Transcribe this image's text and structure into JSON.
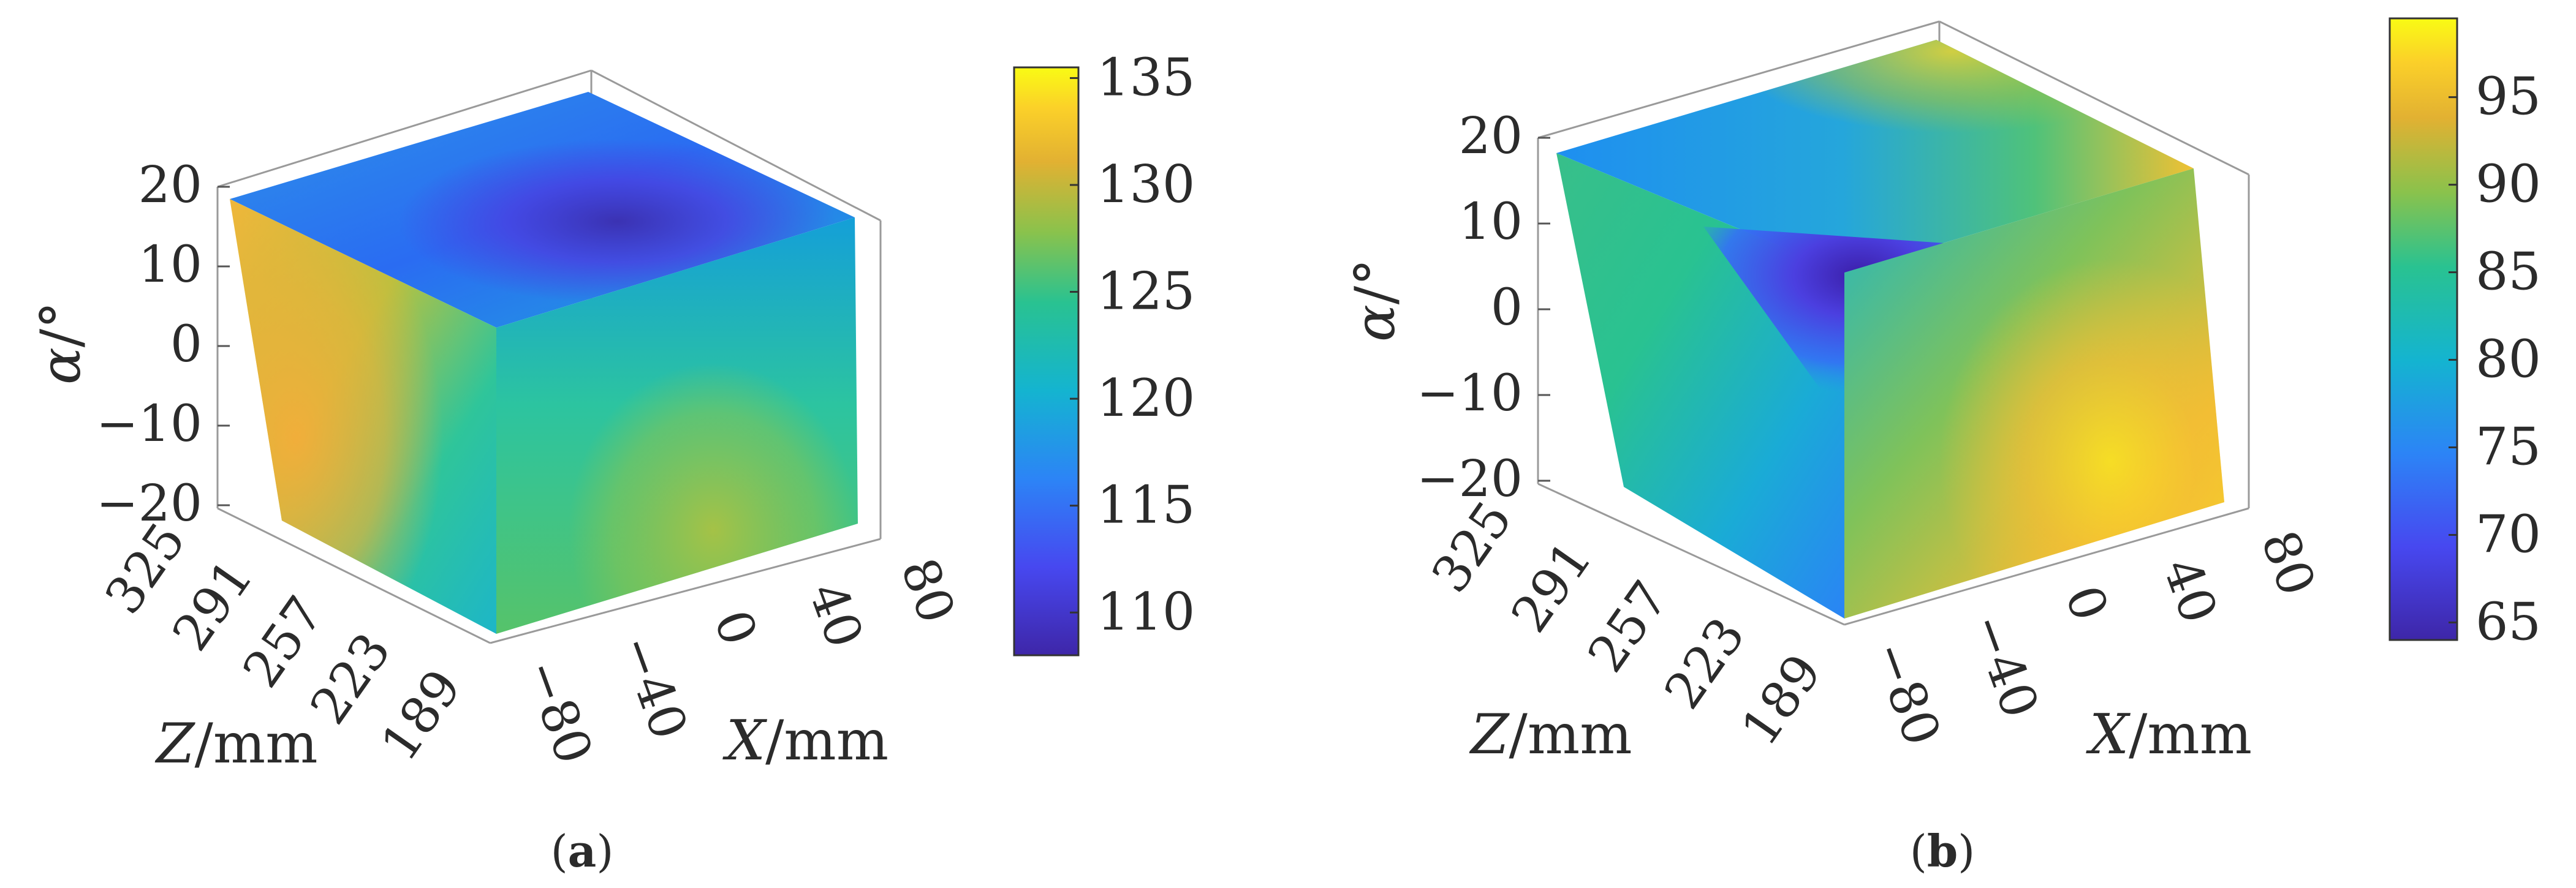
{
  "figure": {
    "panels": [
      {
        "label": "(a)",
        "label_letter": "a",
        "colormap": "parula",
        "colorbar": {
          "ticks": [
            "110",
            "115",
            "120",
            "125",
            "130",
            "135"
          ],
          "range": [
            108,
            135.5
          ]
        },
        "axes": {
          "x": {
            "label_var": "X",
            "label_unit": "/mm",
            "ticks": [
              "−80",
              "−40",
              "0",
              "40",
              "80"
            ]
          },
          "z": {
            "label_var": "Z",
            "label_unit": "/mm",
            "ticks": [
              "325",
              "291",
              "257",
              "223",
              "189"
            ]
          },
          "y": {
            "label_var": "α",
            "label_unit": "/°",
            "ticks": [
              "20",
              "10",
              "0",
              "−10",
              "−20"
            ]
          }
        }
      },
      {
        "label": "(b)",
        "label_letter": "b",
        "colormap": "parula",
        "colorbar": {
          "ticks": [
            "65",
            "70",
            "75",
            "80",
            "85",
            "90",
            "95"
          ],
          "range": [
            64,
            99.5
          ]
        },
        "axes": {
          "x": {
            "label_var": "X",
            "label_unit": "/mm",
            "ticks": [
              "−80",
              "−40",
              "0",
              "40",
              "80"
            ]
          },
          "z": {
            "label_var": "Z",
            "label_unit": "/mm",
            "ticks": [
              "325",
              "291",
              "257",
              "223",
              "189"
            ]
          },
          "y": {
            "label_var": "α",
            "label_unit": "/°",
            "ticks": [
              "20",
              "10",
              "0",
              "−10",
              "−20"
            ]
          }
        }
      }
    ]
  },
  "chart_data": [
    {
      "type": "heatmap",
      "title": "",
      "xlabel": "X/mm",
      "ylabel": "Z/mm",
      "zlabel": "α/°",
      "x_ticks": [
        -80,
        -40,
        0,
        40,
        80
      ],
      "z_ticks": [
        325,
        291,
        257,
        223,
        189
      ],
      "alpha_ticks": [
        20,
        10,
        0,
        -10,
        -20
      ],
      "xlim": [
        -80,
        80
      ],
      "zlim": [
        189,
        325
      ],
      "alpha_lim": [
        -20,
        20
      ],
      "colorbar_ticks": [
        110,
        115,
        120,
        125,
        130,
        135
      ],
      "color_range": [
        108,
        135.5
      ],
      "surface_values": {
        "top_face": "≈117–120, min ≈109 near the X edge",
        "left_face_Z": "≈126–131, max ≈131 at low α",
        "right_face_X": "≈118–127, max ≈128 at low α"
      }
    },
    {
      "type": "heatmap",
      "title": "",
      "xlabel": "X/mm",
      "ylabel": "Z/mm",
      "zlabel": "α/°",
      "x_ticks": [
        -80,
        -40,
        0,
        40,
        80
      ],
      "z_ticks": [
        325,
        291,
        257,
        223,
        189
      ],
      "alpha_ticks": [
        20,
        10,
        0,
        -10,
        -20
      ],
      "xlim": [
        -80,
        80
      ],
      "zlim": [
        189,
        325
      ],
      "alpha_lim": [
        -20,
        20
      ],
      "colorbar_ticks": [
        65,
        70,
        75,
        80,
        85,
        90,
        95
      ],
      "color_range": [
        64,
        99.5
      ],
      "surface_values": {
        "top_face": "≈74–88, max ≈98 at the far corner",
        "left_face_Z": "≈84–87, min ≈66 at the inner triangle",
        "right_face_X": "≈88–96, max ≈96 at low α"
      }
    }
  ]
}
